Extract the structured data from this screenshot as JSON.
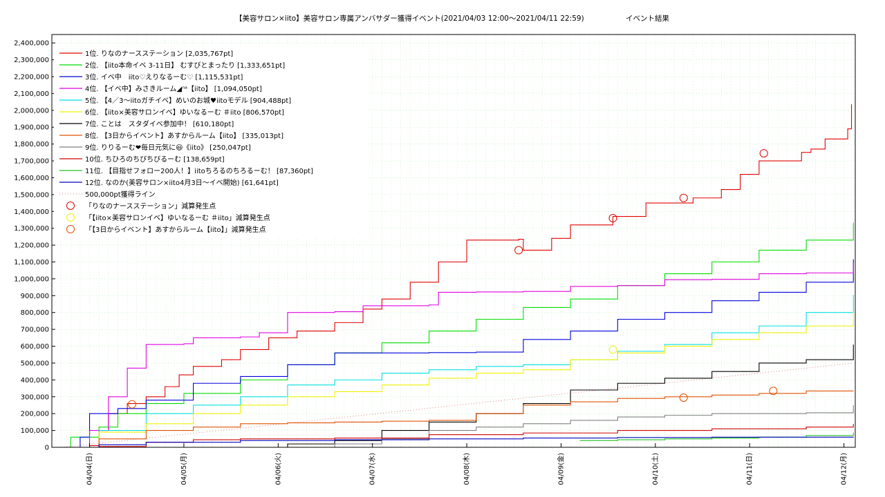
{
  "chart_data": {
    "type": "line",
    "title": "【美容サロン×iito】美容サロン専属アンバサダー獲得イベント(2021/04/03 12:00～2021/04/11 22:59)",
    "subtitle": "イベント結果",
    "xlabel": "",
    "ylabel": "",
    "xlim": [
      0,
      8.52
    ],
    "ylim": [
      0,
      2450000
    ],
    "x_ticks": [
      {
        "x": 0.4,
        "label": "04/04(日)"
      },
      {
        "x": 1.4,
        "label": "04/05(月)"
      },
      {
        "x": 2.4,
        "label": "04/06(火)"
      },
      {
        "x": 3.4,
        "label": "04/07(水)"
      },
      {
        "x": 4.4,
        "label": "04/08(木)"
      },
      {
        "x": 5.4,
        "label": "04/09(金)"
      },
      {
        "x": 6.4,
        "label": "04/10(土)"
      },
      {
        "x": 7.4,
        "label": "04/11(日)"
      },
      {
        "x": 8.4,
        "label": "04/12(月)"
      }
    ],
    "y_ticks": [
      {
        "v": 0,
        "label": "0"
      },
      {
        "v": 100000,
        "label": "100,000"
      },
      {
        "v": 200000,
        "label": "200,000"
      },
      {
        "v": 300000,
        "label": "300,000"
      },
      {
        "v": 400000,
        "label": "400,000"
      },
      {
        "v": 500000,
        "label": "500,000"
      },
      {
        "v": 600000,
        "label": "600,000"
      },
      {
        "v": 700000,
        "label": "700,000"
      },
      {
        "v": 800000,
        "label": "800,000"
      },
      {
        "v": 900000,
        "label": "900,000"
      },
      {
        "v": 1000000,
        "label": "1,000,000"
      },
      {
        "v": 1100000,
        "label": "1,100,000"
      },
      {
        "v": 1200000,
        "label": "1,200,000"
      },
      {
        "v": 1300000,
        "label": "1,300,000"
      },
      {
        "v": 1400000,
        "label": "1,400,000"
      },
      {
        "v": 1500000,
        "label": "1,500,000"
      },
      {
        "v": 1600000,
        "label": "1,600,000"
      },
      {
        "v": 1700000,
        "label": "1,700,000"
      },
      {
        "v": 1800000,
        "label": "1,800,000"
      },
      {
        "v": 1900000,
        "label": "1,900,000"
      },
      {
        "v": 2000000,
        "label": "2,000,000"
      },
      {
        "v": 2100000,
        "label": "2,100,000"
      },
      {
        "v": 2200000,
        "label": "2,200,000"
      },
      {
        "v": 2300000,
        "label": "2,300,000"
      },
      {
        "v": 2400000,
        "label": "2,400,000"
      }
    ],
    "grid": true,
    "legend_position": "top-left",
    "series": [
      {
        "name": "1位. りなのナースステーション [2,035,767pt]",
        "color": "#e00000",
        "points": [
          [
            0.1,
            0
          ],
          [
            0.4,
            10000
          ],
          [
            0.5,
            100000
          ],
          [
            0.6,
            200000
          ],
          [
            0.8,
            260000
          ],
          [
            1.0,
            300000
          ],
          [
            1.2,
            360000
          ],
          [
            1.35,
            430000
          ],
          [
            1.5,
            480000
          ],
          [
            1.8,
            520000
          ],
          [
            2.0,
            580000
          ],
          [
            2.3,
            650000
          ],
          [
            2.6,
            690000
          ],
          [
            3.0,
            740000
          ],
          [
            3.3,
            820000
          ],
          [
            3.5,
            880000
          ],
          [
            3.8,
            980000
          ],
          [
            4.1,
            1100000
          ],
          [
            4.4,
            1230000
          ],
          [
            4.95,
            1235000
          ],
          [
            5.0,
            1170000
          ],
          [
            5.3,
            1240000
          ],
          [
            5.5,
            1320000
          ],
          [
            5.95,
            1370000
          ],
          [
            6.3,
            1450000
          ],
          [
            6.8,
            1480000
          ],
          [
            7.1,
            1530000
          ],
          [
            7.3,
            1620000
          ],
          [
            7.5,
            1700000
          ],
          [
            7.95,
            1750000
          ],
          [
            8.05,
            1770000
          ],
          [
            8.2,
            1830000
          ],
          [
            8.44,
            1890000
          ],
          [
            8.48,
            2035767
          ]
        ]
      },
      {
        "name": "2位. 【iito本命イベ 3-11日】 むすびとまったり [1,333,651pt]",
        "color": "#00dd00",
        "points": [
          [
            0.1,
            0
          ],
          [
            0.2,
            60000
          ],
          [
            0.5,
            120000
          ],
          [
            0.7,
            200000
          ],
          [
            1.0,
            260000
          ],
          [
            1.4,
            320000
          ],
          [
            2.0,
            400000
          ],
          [
            2.5,
            490000
          ],
          [
            3.0,
            560000
          ],
          [
            3.5,
            620000
          ],
          [
            4.0,
            690000
          ],
          [
            4.5,
            760000
          ],
          [
            5.0,
            830000
          ],
          [
            5.5,
            880000
          ],
          [
            6.0,
            960000
          ],
          [
            6.5,
            1030000
          ],
          [
            7.0,
            1100000
          ],
          [
            7.5,
            1170000
          ],
          [
            8.0,
            1230000
          ],
          [
            8.5,
            1333651
          ]
        ]
      },
      {
        "name": "3位. イベ中　iito♡えりなるーむ♡ [1,115,531pt]",
        "color": "#0000dd",
        "points": [
          [
            0.1,
            0
          ],
          [
            0.3,
            60000
          ],
          [
            0.4,
            200000
          ],
          [
            0.7,
            230000
          ],
          [
            1.0,
            280000
          ],
          [
            1.5,
            380000
          ],
          [
            2.0,
            420000
          ],
          [
            2.5,
            490000
          ],
          [
            3.0,
            560000
          ],
          [
            4.0,
            562000
          ],
          [
            4.5,
            565000
          ],
          [
            5.0,
            640000
          ],
          [
            5.5,
            690000
          ],
          [
            6.0,
            760000
          ],
          [
            6.5,
            800000
          ],
          [
            7.0,
            870000
          ],
          [
            7.5,
            920000
          ],
          [
            8.0,
            980000
          ],
          [
            8.5,
            1115531
          ]
        ]
      },
      {
        "name": "4位. 【イベ中】みさきルーム◢ⁿᵃ【iito】 [1,094,050pt]",
        "color": "#e000e0",
        "points": [
          [
            0.1,
            0
          ],
          [
            0.4,
            100000
          ],
          [
            0.6,
            300000
          ],
          [
            0.8,
            470000
          ],
          [
            1.0,
            610000
          ],
          [
            1.4,
            615000
          ],
          [
            1.5,
            650000
          ],
          [
            2.0,
            655000
          ],
          [
            2.2,
            680000
          ],
          [
            2.5,
            800000
          ],
          [
            3.0,
            805000
          ],
          [
            3.3,
            840000
          ],
          [
            4.0,
            845000
          ],
          [
            4.1,
            920000
          ],
          [
            4.5,
            922000
          ],
          [
            5.0,
            925000
          ],
          [
            5.5,
            955000
          ],
          [
            6.0,
            960000
          ],
          [
            6.5,
            995000
          ],
          [
            7.0,
            997000
          ],
          [
            7.5,
            1030000
          ],
          [
            8.0,
            1035000
          ],
          [
            8.5,
            1094050
          ]
        ]
      },
      {
        "name": "5位. 【4／3～iitoガチイベ】めいのお城♥iitoモデル [904,488pt]",
        "color": "#00e0e0",
        "points": [
          [
            0.1,
            0
          ],
          [
            0.5,
            100000
          ],
          [
            1.0,
            200000
          ],
          [
            1.5,
            250000
          ],
          [
            2.0,
            300000
          ],
          [
            2.5,
            370000
          ],
          [
            3.0,
            400000
          ],
          [
            3.5,
            440000
          ],
          [
            4.0,
            460000
          ],
          [
            4.5,
            480000
          ],
          [
            5.0,
            490000
          ],
          [
            5.5,
            520000
          ],
          [
            6.0,
            570000
          ],
          [
            6.5,
            610000
          ],
          [
            7.0,
            680000
          ],
          [
            7.5,
            720000
          ],
          [
            8.0,
            800000
          ],
          [
            8.5,
            904488
          ]
        ]
      },
      {
        "name": "6位. 【iito×美容サロンイベ】ゆいなるーむ ＃iito [806,570pt]",
        "color": "#f0f000",
        "points": [
          [
            0.1,
            0
          ],
          [
            0.5,
            90000
          ],
          [
            1.0,
            140000
          ],
          [
            1.5,
            200000
          ],
          [
            2.0,
            250000
          ],
          [
            2.5,
            300000
          ],
          [
            3.0,
            330000
          ],
          [
            3.5,
            370000
          ],
          [
            4.0,
            410000
          ],
          [
            4.5,
            440000
          ],
          [
            5.0,
            460000
          ],
          [
            5.5,
            520000
          ],
          [
            6.0,
            560000
          ],
          [
            6.5,
            600000
          ],
          [
            7.0,
            640000
          ],
          [
            7.5,
            680000
          ],
          [
            8.0,
            720000
          ],
          [
            8.5,
            806570
          ]
        ]
      },
      {
        "name": "7位. ことは　スタダイベ参加中！ [610,180pt]",
        "color": "#000000",
        "points": [
          [
            2.4,
            0
          ],
          [
            2.5,
            20000
          ],
          [
            3.0,
            40000
          ],
          [
            3.5,
            100000
          ],
          [
            4.0,
            150000
          ],
          [
            4.5,
            200000
          ],
          [
            5.0,
            260000
          ],
          [
            5.5,
            340000
          ],
          [
            6.0,
            380000
          ],
          [
            6.5,
            410000
          ],
          [
            7.0,
            450000
          ],
          [
            7.5,
            500000
          ],
          [
            8.0,
            520000
          ],
          [
            8.5,
            610180
          ]
        ]
      },
      {
        "name": "8位. 【3日からイベント】あすからルーム【iito】 [335,013pt]",
        "color": "#e05000",
        "points": [
          [
            0.1,
            0
          ],
          [
            0.5,
            50000
          ],
          [
            1.0,
            100000
          ],
          [
            1.5,
            120000
          ],
          [
            2.0,
            140000
          ],
          [
            2.5,
            145000
          ],
          [
            3.0,
            150000
          ],
          [
            3.5,
            155000
          ],
          [
            4.0,
            160000
          ],
          [
            4.5,
            200000
          ],
          [
            5.0,
            250000
          ],
          [
            5.5,
            270000
          ],
          [
            6.0,
            290000
          ],
          [
            6.5,
            300000
          ],
          [
            7.0,
            310000
          ],
          [
            7.5,
            320000
          ],
          [
            8.0,
            334000
          ],
          [
            8.5,
            335013
          ]
        ]
      },
      {
        "name": "9位. りりるーむ❤毎日元気に😃《iito》 [250,047pt]",
        "color": "#808080",
        "points": [
          [
            2.4,
            0
          ],
          [
            3.0,
            20000
          ],
          [
            3.5,
            50000
          ],
          [
            4.0,
            100000
          ],
          [
            4.5,
            120000
          ],
          [
            5.0,
            140000
          ],
          [
            5.5,
            160000
          ],
          [
            6.0,
            180000
          ],
          [
            6.5,
            190000
          ],
          [
            7.0,
            200000
          ],
          [
            8.0,
            205000
          ],
          [
            8.5,
            250047
          ]
        ]
      },
      {
        "name": "10位. ちひろのちびちびるーむ [138,659pt]",
        "color": "#d00000",
        "points": [
          [
            0.1,
            0
          ],
          [
            0.5,
            5000
          ],
          [
            1.0,
            30000
          ],
          [
            1.5,
            45000
          ],
          [
            2.0,
            50000
          ],
          [
            3.0,
            55000
          ],
          [
            4.0,
            75000
          ],
          [
            5.0,
            85000
          ],
          [
            6.0,
            100000
          ],
          [
            7.0,
            110000
          ],
          [
            8.0,
            120000
          ],
          [
            8.5,
            138659
          ]
        ]
      },
      {
        "name": "11位. 【目指せフォロー200人！】iitoちろるのちろるーむ！ [87,360pt]",
        "color": "#20c020",
        "points": [
          [
            5.6,
            40000
          ],
          [
            6.0,
            45000
          ],
          [
            6.5,
            50000
          ],
          [
            7.0,
            55000
          ],
          [
            7.5,
            60000
          ],
          [
            8.0,
            70000
          ],
          [
            8.5,
            87360
          ]
        ]
      },
      {
        "name": "12位. なのか(美容サロン×iito4月3日～イベ開始) [61,641pt]",
        "color": "#0000c0",
        "points": [
          [
            0.1,
            0
          ],
          [
            0.5,
            15000
          ],
          [
            1.0,
            30000
          ],
          [
            2.0,
            40000
          ],
          [
            3.0,
            45000
          ],
          [
            4.0,
            50000
          ],
          [
            5.0,
            55000
          ],
          [
            6.0,
            58000
          ],
          [
            7.0,
            60000
          ],
          [
            8.5,
            61641
          ]
        ]
      }
    ],
    "target_line": {
      "name": "500,000pt獲得ライン",
      "color": "#e08080",
      "points": [
        [
          0.1,
          0
        ],
        [
          8.5,
          500000
        ]
      ]
    },
    "markers": [
      {
        "name": "「りなのナースステーション」減算発生点",
        "color": "#e00000",
        "points": [
          [
            4.95,
            1170000
          ],
          [
            5.95,
            1360000
          ],
          [
            6.7,
            1480000
          ],
          [
            7.55,
            1745000
          ]
        ]
      },
      {
        "name": "「【iito×美容サロンイベ】ゆいなるーむ ＃iito」減算発生点",
        "color": "#f0f000",
        "points": [
          [
            5.95,
            580000
          ]
        ]
      },
      {
        "name": "「【3日からイベント】あすからルーム【iito】」減算発生点",
        "color": "#e05000",
        "points": [
          [
            0.85,
            255000
          ],
          [
            6.7,
            295000
          ],
          [
            7.65,
            335000
          ]
        ]
      }
    ]
  }
}
